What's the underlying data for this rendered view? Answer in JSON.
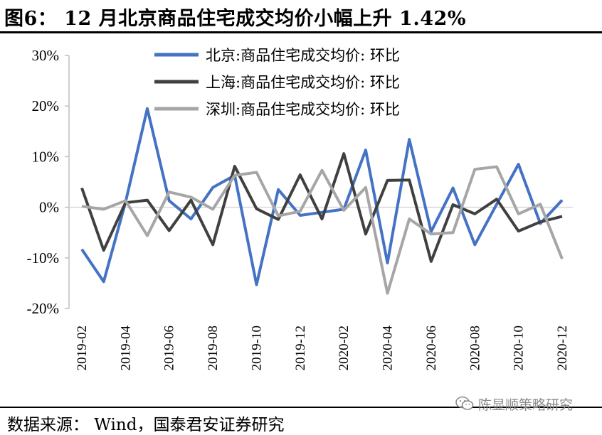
{
  "title": "图6： 12 月北京商品住宅成交均价小幅上升 1.42%",
  "source": "数据来源： Wind，国泰君安证券研究",
  "watermark": "陈显顺策略研究",
  "watermark_icon": "wechat-icon",
  "colors": {
    "beijing": "#4472C4",
    "shanghai": "#404040",
    "shenzhen": "#A6A6A6",
    "zero_line": "#D9D9D9",
    "axis": "#BFBFBF"
  },
  "chart_data": {
    "type": "line",
    "title": "12 月北京商品住宅成交均价小幅上升 1.42%",
    "xlabel": "",
    "ylabel": "",
    "ylim": [
      -20,
      30
    ],
    "y_ticks": [
      "30%",
      "20%",
      "10%",
      "0%",
      "-10%",
      "-20%"
    ],
    "y_tick_values": [
      30,
      20,
      10,
      0,
      -10,
      -20
    ],
    "grid": false,
    "legend_position": "top",
    "x_tick_labels": [
      "2019-02",
      "2019-04",
      "2019-06",
      "2019-08",
      "2019-10",
      "2019-12",
      "2020-02",
      "2020-04",
      "2020-06",
      "2020-08",
      "2020-10",
      "2020-12"
    ],
    "x": [
      "2019-02",
      "2019-03",
      "2019-04",
      "2019-05",
      "2019-06",
      "2019-07",
      "2019-08",
      "2019-09",
      "2019-10",
      "2019-11",
      "2019-12",
      "2020-01",
      "2020-02",
      "2020-03",
      "2020-04",
      "2020-05",
      "2020-06",
      "2020-07",
      "2020-08",
      "2020-09",
      "2020-10",
      "2020-11",
      "2020-12"
    ],
    "series": [
      {
        "name": "北京:商品住宅成交均价: 环比",
        "color": "#4472C4",
        "values": [
          -8.3,
          -14.7,
          1.0,
          19.5,
          1.3,
          -2.3,
          3.9,
          6.3,
          -15.3,
          3.5,
          -1.6,
          -1.0,
          -0.4,
          11.3,
          -11.0,
          13.4,
          -4.8,
          3.8,
          -7.4,
          0.6,
          8.5,
          -3.2,
          1.42
        ]
      },
      {
        "name": "上海:商品住宅成交均价: 环比",
        "color": "#404040",
        "values": [
          3.8,
          -8.5,
          0.9,
          1.4,
          -4.6,
          1.4,
          -7.4,
          8.1,
          -0.3,
          -2.4,
          6.4,
          -2.3,
          10.6,
          -5.3,
          5.3,
          5.4,
          -10.7,
          0.5,
          -1.3,
          1.6,
          -4.7,
          -2.9,
          -1.8
        ]
      },
      {
        "name": "深圳:商品住宅成交均价: 环比",
        "color": "#A6A6A6",
        "values": [
          0.2,
          -0.4,
          1.3,
          -5.6,
          3.0,
          2.0,
          -0.4,
          6.3,
          6.9,
          -1.7,
          -0.8,
          7.3,
          -0.6,
          3.9,
          -17.0,
          -2.3,
          -5.3,
          -5.0,
          7.5,
          8.0,
          -1.3,
          0.6,
          -10.2
        ]
      }
    ]
  }
}
